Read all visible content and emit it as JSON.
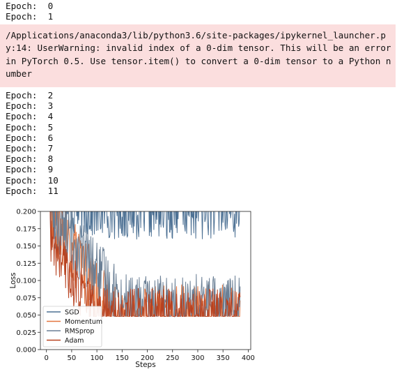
{
  "output": {
    "epochs_before_warning": [
      {
        "label": "Epoch:",
        "value": "0"
      },
      {
        "label": "Epoch:",
        "value": "1"
      }
    ],
    "warning": {
      "background_color": "#fbdede",
      "lines": [
        "/Applications/anaconda3/lib/python3.6/site-packages/ipykernel_launcher.p",
        "y:14: UserWarning: invalid index of a 0-dim tensor. This will be an error",
        "in PyTorch 0.5. Use tensor.item() to convert a 0-dim tensor to a Python n",
        "umber"
      ]
    },
    "epochs_after_warning": [
      {
        "label": "Epoch:",
        "value": "2"
      },
      {
        "label": "Epoch:",
        "value": "3"
      },
      {
        "label": "Epoch:",
        "value": "4"
      },
      {
        "label": "Epoch:",
        "value": "5"
      },
      {
        "label": "Epoch:",
        "value": "6"
      },
      {
        "label": "Epoch:",
        "value": "7"
      },
      {
        "label": "Epoch:",
        "value": "8"
      },
      {
        "label": "Epoch:",
        "value": "9"
      },
      {
        "label": "Epoch:",
        "value": "10"
      },
      {
        "label": "Epoch:",
        "value": "11"
      }
    ]
  },
  "chart_data": {
    "type": "line",
    "title": "",
    "xlabel": "Steps",
    "ylabel": "Loss",
    "xlim": [
      -12,
      405
    ],
    "ylim": [
      0.0,
      0.2
    ],
    "x_ticks": [
      0,
      50,
      100,
      150,
      200,
      250,
      300,
      350,
      400
    ],
    "y_ticks": [
      "0.000",
      "0.025",
      "0.050",
      "0.075",
      "0.100",
      "0.125",
      "0.150",
      "0.175",
      "0.200"
    ],
    "grid": false,
    "legend_position": "lower-left",
    "n_points": 385,
    "series": [
      {
        "name": "SGD",
        "color": "#4d7194",
        "base": 0.2,
        "decay": 0.0,
        "noise": 0.045,
        "floor": 0.085
      },
      {
        "name": "Momentum",
        "color": "#e3743e",
        "base": 0.2,
        "decay": 0.0012,
        "noise": 0.05,
        "floor": 0.04
      },
      {
        "name": "RMSprop",
        "color": "#6a7f95",
        "base": 0.2,
        "decay": 0.0009,
        "noise": 0.045,
        "floor": 0.06
      },
      {
        "name": "Adam",
        "color": "#b84220",
        "base": 0.16,
        "decay": 0.0012,
        "noise": 0.04,
        "floor": 0.045
      }
    ]
  }
}
